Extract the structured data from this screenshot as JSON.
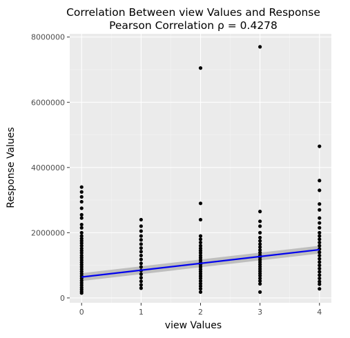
{
  "chart_data": {
    "type": "scatter",
    "title": "Correlation Between view Values and Response",
    "subtitle": "Pearson Correlation ρ = 0.4278",
    "xlabel": "view Values",
    "ylabel": "Response Values",
    "xlim": [
      -0.2,
      4.2
    ],
    "ylim": [
      -150000,
      8100000
    ],
    "xticks": [
      {
        "value": 0,
        "label": "0"
      },
      {
        "value": 1,
        "label": "1"
      },
      {
        "value": 2,
        "label": "2"
      },
      {
        "value": 3,
        "label": "3"
      },
      {
        "value": 4,
        "label": "4"
      }
    ],
    "yticks": [
      {
        "value": 0,
        "label": "0"
      },
      {
        "value": 2000000,
        "label": "2000000"
      },
      {
        "value": 4000000,
        "label": "4000000"
      },
      {
        "value": 6000000,
        "label": "6000000"
      },
      {
        "value": 8000000,
        "label": "8000000"
      }
    ],
    "grid": true,
    "colors": {
      "panel": "#ebebeb",
      "grid_major": "#ffffff",
      "points": "#000000",
      "fit_line": "#0000ee",
      "confidence_band": "#b3b3b3"
    },
    "points": [
      {
        "x": 0,
        "y": 3400000
      },
      {
        "x": 0,
        "y": 3250000
      },
      {
        "x": 0,
        "y": 3100000
      },
      {
        "x": 0,
        "y": 2950000
      },
      {
        "x": 0,
        "y": 2750000
      },
      {
        "x": 0,
        "y": 2550000
      },
      {
        "x": 0,
        "y": 2450000
      },
      {
        "x": 0,
        "y": 2250000
      },
      {
        "x": 0,
        "y": 2150000
      },
      {
        "x": 0,
        "y": 2000000
      },
      {
        "x": 0,
        "y": 1900000
      },
      {
        "x": 0,
        "y": 1820000
      },
      {
        "x": 0,
        "y": 1750000
      },
      {
        "x": 0,
        "y": 1680000
      },
      {
        "x": 0,
        "y": 1600000
      },
      {
        "x": 0,
        "y": 1520000
      },
      {
        "x": 0,
        "y": 1450000
      },
      {
        "x": 0,
        "y": 1380000
      },
      {
        "x": 0,
        "y": 1300000
      },
      {
        "x": 0,
        "y": 1230000
      },
      {
        "x": 0,
        "y": 1160000
      },
      {
        "x": 0,
        "y": 1090000
      },
      {
        "x": 0,
        "y": 1020000
      },
      {
        "x": 0,
        "y": 950000
      },
      {
        "x": 0,
        "y": 880000
      },
      {
        "x": 0,
        "y": 810000
      },
      {
        "x": 0,
        "y": 740000
      },
      {
        "x": 0,
        "y": 670000
      },
      {
        "x": 0,
        "y": 600000
      },
      {
        "x": 0,
        "y": 530000
      },
      {
        "x": 0,
        "y": 460000
      },
      {
        "x": 0,
        "y": 390000
      },
      {
        "x": 0,
        "y": 320000
      },
      {
        "x": 0,
        "y": 260000
      },
      {
        "x": 0,
        "y": 200000
      },
      {
        "x": 0,
        "y": 150000
      },
      {
        "x": 1,
        "y": 2400000
      },
      {
        "x": 1,
        "y": 2200000
      },
      {
        "x": 1,
        "y": 2050000
      },
      {
        "x": 1,
        "y": 1900000
      },
      {
        "x": 1,
        "y": 1780000
      },
      {
        "x": 1,
        "y": 1650000
      },
      {
        "x": 1,
        "y": 1530000
      },
      {
        "x": 1,
        "y": 1420000
      },
      {
        "x": 1,
        "y": 1300000
      },
      {
        "x": 1,
        "y": 1180000
      },
      {
        "x": 1,
        "y": 1060000
      },
      {
        "x": 1,
        "y": 950000
      },
      {
        "x": 1,
        "y": 840000
      },
      {
        "x": 1,
        "y": 730000
      },
      {
        "x": 1,
        "y": 620000
      },
      {
        "x": 1,
        "y": 510000
      },
      {
        "x": 1,
        "y": 400000
      },
      {
        "x": 1,
        "y": 300000
      },
      {
        "x": 2,
        "y": 7050000
      },
      {
        "x": 2,
        "y": 2900000
      },
      {
        "x": 2,
        "y": 2400000
      },
      {
        "x": 2,
        "y": 1900000
      },
      {
        "x": 2,
        "y": 1800000
      },
      {
        "x": 2,
        "y": 1700000
      },
      {
        "x": 2,
        "y": 1600000
      },
      {
        "x": 2,
        "y": 1520000
      },
      {
        "x": 2,
        "y": 1450000
      },
      {
        "x": 2,
        "y": 1380000
      },
      {
        "x": 2,
        "y": 1300000
      },
      {
        "x": 2,
        "y": 1230000
      },
      {
        "x": 2,
        "y": 1160000
      },
      {
        "x": 2,
        "y": 1090000
      },
      {
        "x": 2,
        "y": 1020000
      },
      {
        "x": 2,
        "y": 950000
      },
      {
        "x": 2,
        "y": 880000
      },
      {
        "x": 2,
        "y": 810000
      },
      {
        "x": 2,
        "y": 740000
      },
      {
        "x": 2,
        "y": 670000
      },
      {
        "x": 2,
        "y": 600000
      },
      {
        "x": 2,
        "y": 520000
      },
      {
        "x": 2,
        "y": 440000
      },
      {
        "x": 2,
        "y": 360000
      },
      {
        "x": 2,
        "y": 280000
      },
      {
        "x": 2,
        "y": 180000
      },
      {
        "x": 3,
        "y": 7700000
      },
      {
        "x": 3,
        "y": 2650000
      },
      {
        "x": 3,
        "y": 2350000
      },
      {
        "x": 3,
        "y": 2200000
      },
      {
        "x": 3,
        "y": 2000000
      },
      {
        "x": 3,
        "y": 1850000
      },
      {
        "x": 3,
        "y": 1750000
      },
      {
        "x": 3,
        "y": 1650000
      },
      {
        "x": 3,
        "y": 1560000
      },
      {
        "x": 3,
        "y": 1470000
      },
      {
        "x": 3,
        "y": 1390000
      },
      {
        "x": 3,
        "y": 1310000
      },
      {
        "x": 3,
        "y": 1240000
      },
      {
        "x": 3,
        "y": 1170000
      },
      {
        "x": 3,
        "y": 1100000
      },
      {
        "x": 3,
        "y": 1030000
      },
      {
        "x": 3,
        "y": 960000
      },
      {
        "x": 3,
        "y": 890000
      },
      {
        "x": 3,
        "y": 820000
      },
      {
        "x": 3,
        "y": 750000
      },
      {
        "x": 3,
        "y": 680000
      },
      {
        "x": 3,
        "y": 600000
      },
      {
        "x": 3,
        "y": 520000
      },
      {
        "x": 3,
        "y": 430000
      },
      {
        "x": 3,
        "y": 180000
      },
      {
        "x": 4,
        "y": 4650000
      },
      {
        "x": 4,
        "y": 3600000
      },
      {
        "x": 4,
        "y": 3300000
      },
      {
        "x": 4,
        "y": 2880000
      },
      {
        "x": 4,
        "y": 2700000
      },
      {
        "x": 4,
        "y": 2450000
      },
      {
        "x": 4,
        "y": 2300000
      },
      {
        "x": 4,
        "y": 2150000
      },
      {
        "x": 4,
        "y": 2000000
      },
      {
        "x": 4,
        "y": 1900000
      },
      {
        "x": 4,
        "y": 1800000
      },
      {
        "x": 4,
        "y": 1700000
      },
      {
        "x": 4,
        "y": 1600000
      },
      {
        "x": 4,
        "y": 1500000
      },
      {
        "x": 4,
        "y": 1400000
      },
      {
        "x": 4,
        "y": 1300000
      },
      {
        "x": 4,
        "y": 1200000
      },
      {
        "x": 4,
        "y": 1100000
      },
      {
        "x": 4,
        "y": 1000000
      },
      {
        "x": 4,
        "y": 900000
      },
      {
        "x": 4,
        "y": 800000
      },
      {
        "x": 4,
        "y": 700000
      },
      {
        "x": 4,
        "y": 600000
      },
      {
        "x": 4,
        "y": 500000
      },
      {
        "x": 4,
        "y": 420000
      },
      {
        "x": 4,
        "y": 280000
      }
    ],
    "fit": {
      "type": "linear",
      "x": [
        0,
        4
      ],
      "y": [
        640000,
        1480000
      ],
      "band_lower": [
        520000,
        1360000
      ],
      "band_upper": [
        760000,
        1600000
      ]
    }
  }
}
